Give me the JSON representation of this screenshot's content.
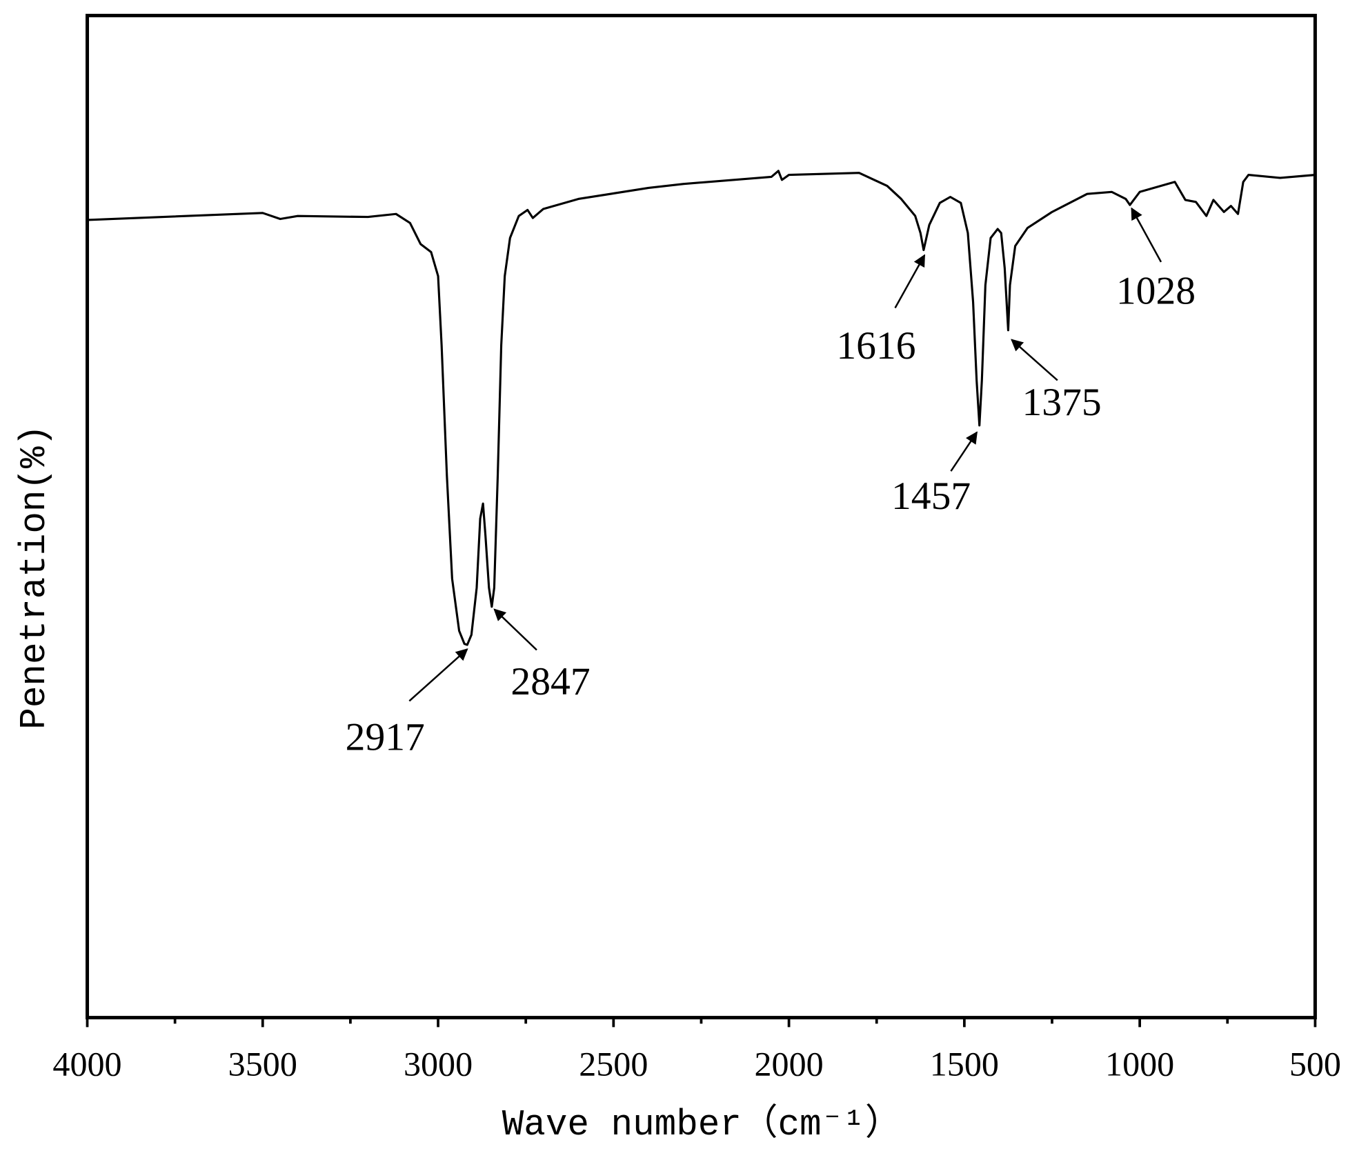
{
  "chart_data": {
    "type": "line",
    "x_label": "Wave number（cm⁻¹）",
    "y_label": "Penetration(%)",
    "xlim": [
      4000,
      500
    ],
    "xticks": [
      4000,
      3500,
      3000,
      2500,
      2000,
      1500,
      1000,
      500
    ],
    "xminorticks": [
      3750,
      3250,
      2750,
      2250,
      1750,
      1250,
      750
    ],
    "ylim": [
      0,
      100
    ],
    "series": [
      {
        "color": "#000000",
        "x": [
          4000,
          3500,
          3450,
          3400,
          3200,
          3120,
          3080,
          3050,
          3020,
          3000,
          2990,
          2975,
          2960,
          2940,
          2925,
          2917,
          2905,
          2890,
          2880,
          2872,
          2865,
          2855,
          2847,
          2840,
          2830,
          2820,
          2810,
          2795,
          2770,
          2745,
          2730,
          2700,
          2600,
          2400,
          2300,
          2050,
          2030,
          2020,
          2000,
          1800,
          1720,
          1680,
          1640,
          1625,
          1616,
          1600,
          1570,
          1540,
          1510,
          1490,
          1475,
          1465,
          1457,
          1450,
          1440,
          1425,
          1405,
          1395,
          1385,
          1375,
          1370,
          1355,
          1320,
          1250,
          1150,
          1080,
          1040,
          1028,
          1000,
          900,
          870,
          840,
          810,
          790,
          760,
          740,
          720,
          705,
          690,
          600,
          500
        ],
        "values": [
          79.6,
          80.3,
          79.7,
          80.0,
          79.9,
          80.2,
          79.3,
          77.2,
          76.4,
          74.0,
          67.1,
          54.1,
          43.8,
          38.6,
          37.3,
          37.2,
          38.2,
          42.9,
          49.8,
          51.3,
          48.1,
          42.9,
          41.0,
          42.9,
          54.1,
          67.1,
          74.0,
          77.8,
          80.0,
          80.6,
          79.8,
          80.7,
          81.7,
          82.8,
          83.2,
          83.9,
          84.5,
          83.6,
          84.1,
          84.3,
          83.0,
          81.7,
          80.0,
          78.3,
          76.6,
          79.1,
          81.3,
          81.9,
          81.3,
          78.3,
          71.4,
          63.6,
          59.1,
          63.6,
          73.1,
          77.8,
          78.7,
          78.3,
          74.8,
          68.6,
          73.1,
          77.0,
          78.8,
          80.4,
          82.2,
          82.4,
          81.7,
          81.1,
          82.4,
          83.4,
          81.6,
          81.4,
          80.0,
          81.6,
          80.4,
          81.0,
          80.2,
          83.4,
          84.1,
          83.8,
          84.1
        ]
      }
    ],
    "annotations": [
      {
        "text": "2917",
        "x": 2917,
        "y": 37.2
      },
      {
        "text": "2847",
        "x": 2847,
        "y": 41.0
      },
      {
        "text": "1616",
        "x": 1616,
        "y": 76.6
      },
      {
        "text": "1457",
        "x": 1457,
        "y": 59.1
      },
      {
        "text": "1375",
        "x": 1375,
        "y": 68.6
      },
      {
        "text": "1028",
        "x": 1028,
        "y": 81.1
      }
    ]
  }
}
